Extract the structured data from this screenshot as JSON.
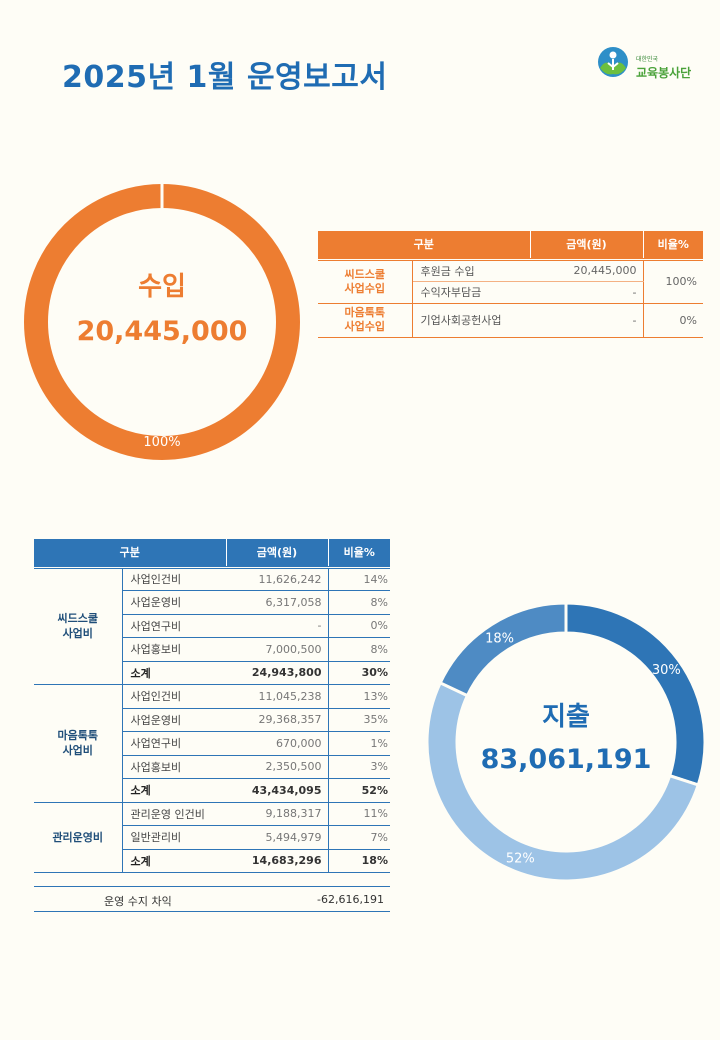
{
  "header": {
    "title": "2025년 1월 운영보고서",
    "logo_sub": "대한민국",
    "logo_name": "교육봉사단"
  },
  "income_donut": {
    "label": "수입",
    "total": "20,445,000",
    "slice_label": "100%",
    "color": "#ed7d31"
  },
  "income_table": {
    "headers": [
      "구분",
      "금액(원)",
      "비율%"
    ],
    "groups": [
      {
        "category": [
          "씨드스쿨",
          "사업수입"
        ],
        "ratio": "100%",
        "rows": [
          {
            "item": "후원금 수입",
            "amount": "20,445,000"
          },
          {
            "item": "수익자부담금",
            "amount": "-"
          }
        ]
      },
      {
        "category": [
          "마음톡톡",
          "사업수입"
        ],
        "ratio": "0%",
        "rows": [
          {
            "item": "기업사회공헌사업",
            "amount": "-"
          }
        ]
      }
    ]
  },
  "expense_table": {
    "headers": [
      "구분",
      "금액(원)",
      "비율%"
    ],
    "groups": [
      {
        "category": [
          "씨드스쿨",
          "사업비"
        ],
        "rows": [
          {
            "item": "사업인건비",
            "amount": "11,626,242",
            "ratio": "14%"
          },
          {
            "item": "사업운영비",
            "amount": "6,317,058",
            "ratio": "8%"
          },
          {
            "item": "사업연구비",
            "amount": "-",
            "ratio": "0%"
          },
          {
            "item": "사업홍보비",
            "amount": "7,000,500",
            "ratio": "8%"
          }
        ],
        "subtotal": {
          "item": "소계",
          "amount": "24,943,800",
          "ratio": "30%"
        }
      },
      {
        "category": [
          "마음톡톡",
          "사업비"
        ],
        "rows": [
          {
            "item": "사업인건비",
            "amount": "11,045,238",
            "ratio": "13%"
          },
          {
            "item": "사업운영비",
            "amount": "29,368,357",
            "ratio": "35%"
          },
          {
            "item": "사업연구비",
            "amount": "670,000",
            "ratio": "1%"
          },
          {
            "item": "사업홍보비",
            "amount": "2,350,500",
            "ratio": "3%"
          }
        ],
        "subtotal": {
          "item": "소계",
          "amount": "43,434,095",
          "ratio": "52%"
        }
      },
      {
        "category": [
          "관리운영비"
        ],
        "rows": [
          {
            "item": "관리운영 인건비",
            "amount": "9,188,317",
            "ratio": "11%"
          },
          {
            "item": "일반관리비",
            "amount": "5,494,979",
            "ratio": "7%"
          }
        ],
        "subtotal": {
          "item": "소계",
          "amount": "14,683,296",
          "ratio": "18%"
        }
      }
    ],
    "net_label": "운영 수지 차익",
    "net_value": "-62,616,191"
  },
  "expense_donut": {
    "label": "지출",
    "total": "83,061,191",
    "slices": [
      {
        "value": 30,
        "label": "30%",
        "color": "#2e75b6"
      },
      {
        "value": 52,
        "label": "52%",
        "color": "#9dc3e6"
      },
      {
        "value": 18,
        "label": "18%",
        "color": "#4e8bc4"
      }
    ]
  },
  "colors": {
    "income": "#ed7d31",
    "expense": "#2e75b6",
    "title": "#1f6cb3"
  }
}
